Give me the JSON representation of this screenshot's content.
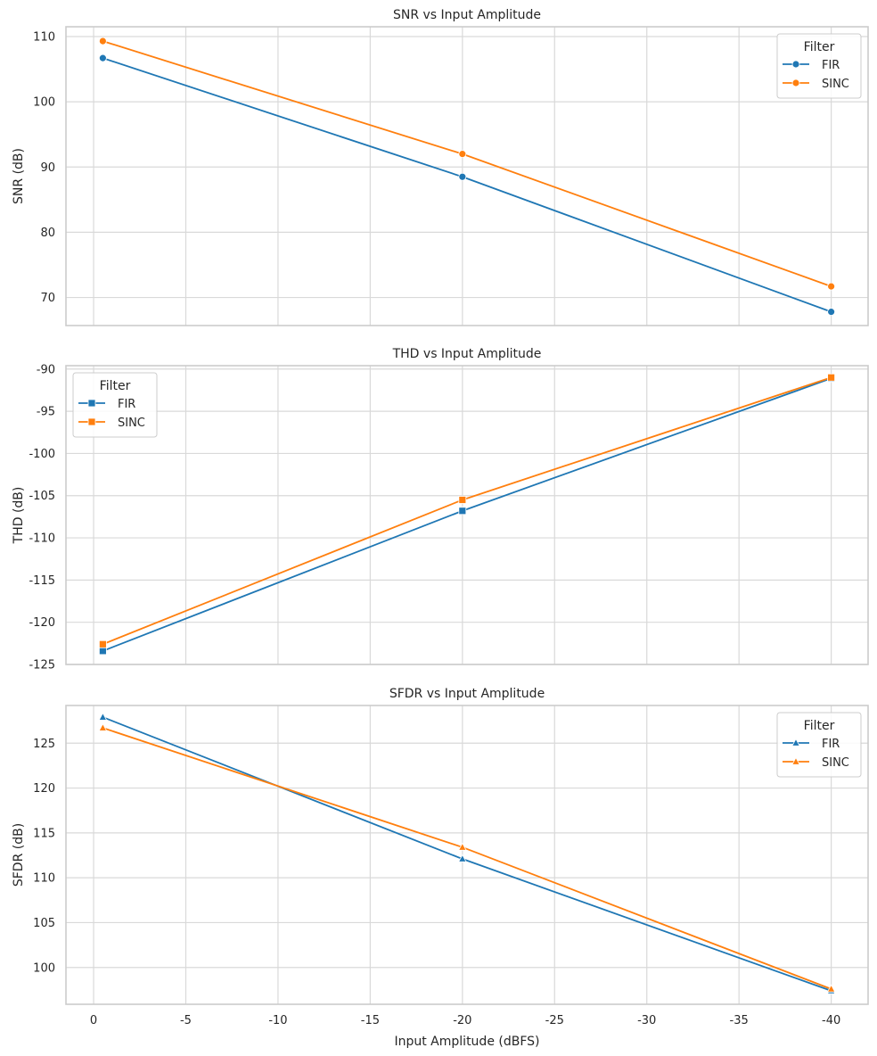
{
  "chart_data": [
    {
      "type": "line",
      "title": "SNR vs Input Amplitude",
      "xlabel": "",
      "ylabel": "SNR (dB)",
      "x": [
        -0.5,
        -20,
        -40
      ],
      "xlim": [
        1.5,
        -42
      ],
      "ylim": [
        65.7,
        111.5
      ],
      "yticks": [
        70,
        80,
        90,
        100,
        110
      ],
      "xticks": [
        0,
        -5,
        -10,
        -15,
        -20,
        -25,
        -30,
        -35,
        -40
      ],
      "show_xticklabels": false,
      "marker": "circle",
      "legend": {
        "title": "Filter",
        "position": "top-right"
      },
      "series": [
        {
          "name": "FIR",
          "color": "#1f77b4",
          "values": [
            106.7,
            88.5,
            67.8
          ]
        },
        {
          "name": "SINC",
          "color": "#ff7f0e",
          "values": [
            109.3,
            92.0,
            71.7
          ]
        }
      ]
    },
    {
      "type": "line",
      "title": "THD vs Input Amplitude",
      "xlabel": "",
      "ylabel": "THD (dB)",
      "x": [
        -0.5,
        -20,
        -40
      ],
      "xlim": [
        1.5,
        -42
      ],
      "ylim": [
        -125,
        -89.6
      ],
      "yticks": [
        -90,
        -95,
        -100,
        -105,
        -110,
        -115,
        -120,
        -125
      ],
      "xticks": [
        0,
        -5,
        -10,
        -15,
        -20,
        -25,
        -30,
        -35,
        -40
      ],
      "show_xticklabels": false,
      "marker": "square",
      "legend": {
        "title": "Filter",
        "position": "top-left"
      },
      "series": [
        {
          "name": "FIR",
          "color": "#1f77b4",
          "values": [
            -123.4,
            -106.8,
            -91.1
          ]
        },
        {
          "name": "SINC",
          "color": "#ff7f0e",
          "values": [
            -122.6,
            -105.5,
            -91.0
          ]
        }
      ]
    },
    {
      "type": "line",
      "title": "SFDR vs Input Amplitude",
      "xlabel": "Input Amplitude (dBFS)",
      "ylabel": "SFDR (dB)",
      "x": [
        -0.5,
        -20,
        -40
      ],
      "xlim": [
        1.5,
        -42
      ],
      "ylim": [
        95.9,
        129.2
      ],
      "yticks": [
        100,
        105,
        110,
        115,
        120,
        125
      ],
      "xticks": [
        0,
        -5,
        -10,
        -15,
        -20,
        -25,
        -30,
        -35,
        -40
      ],
      "show_xticklabels": true,
      "marker": "triangle",
      "legend": {
        "title": "Filter",
        "position": "top-right"
      },
      "series": [
        {
          "name": "FIR",
          "color": "#1f77b4",
          "values": [
            127.9,
            112.1,
            97.4
          ]
        },
        {
          "name": "SINC",
          "color": "#ff7f0e",
          "values": [
            126.7,
            113.4,
            97.6
          ]
        }
      ]
    }
  ]
}
